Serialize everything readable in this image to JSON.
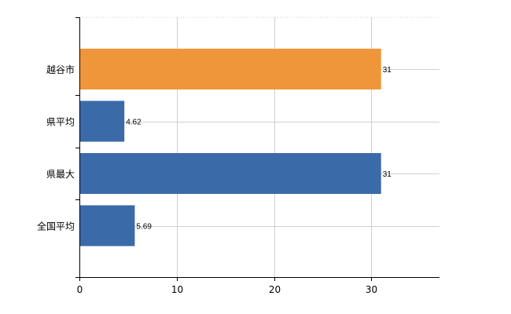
{
  "chart_data": {
    "type": "bar",
    "orientation": "horizontal",
    "title": "",
    "xlabel": "",
    "ylabel": "",
    "categories": [
      "越谷市",
      "県平均",
      "県最大",
      "全国平均"
    ],
    "values": [
      31,
      4.62,
      31,
      5.69
    ],
    "data_labels": [
      "31",
      "4.62",
      "31",
      "5.69"
    ],
    "bar_colors": [
      "#f0963a",
      "#3b6aa8",
      "#3b6aa8",
      "#3b6aa8"
    ],
    "xlim": [
      0,
      37
    ],
    "xticks": [
      0,
      10,
      20,
      30
    ],
    "xtick_labels": [
      "0",
      "10",
      "20",
      "30"
    ],
    "grid": true,
    "legend": "none"
  }
}
